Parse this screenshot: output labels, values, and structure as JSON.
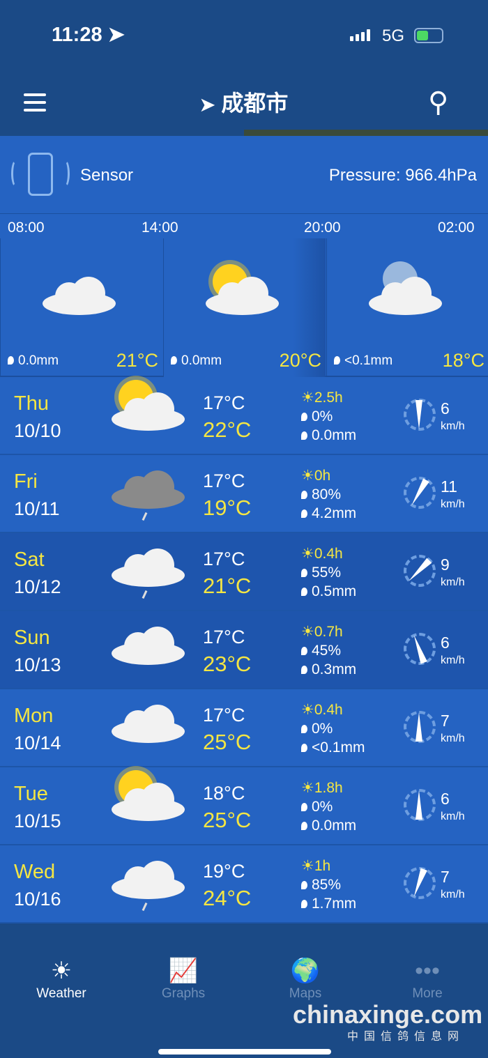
{
  "status": {
    "time": "11:28",
    "network": "5G"
  },
  "nav": {
    "title": "成都市"
  },
  "sensor": {
    "label": "Sensor",
    "pressure": "Pressure: 966.4hPa"
  },
  "hourly": {
    "times": [
      "08:00",
      "14:00",
      "20:00",
      "02:00"
    ],
    "items": [
      {
        "icon": "cloudy",
        "precip": "0.0mm",
        "temp": "21°C"
      },
      {
        "icon": "partly-sunny",
        "precip": "0.0mm",
        "temp": "20°C"
      },
      {
        "icon": "night-cloudy",
        "precip": "<0.1mm",
        "temp": "18°C"
      }
    ]
  },
  "days": [
    {
      "day": "Thu",
      "date": "10/10",
      "icon": "partly-sunny",
      "min": "17°C",
      "max": "22°C",
      "sun": "2.5h",
      "prob": "0%",
      "rain": "0.0mm",
      "wind": "6",
      "unit": "km/h",
      "wind_dir_deg": 180
    },
    {
      "day": "Fri",
      "date": "10/11",
      "icon": "rain-dark",
      "min": "17°C",
      "max": "19°C",
      "sun": "0h",
      "prob": "80%",
      "rain": "4.2mm",
      "wind": "11",
      "unit": "km/h",
      "wind_dir_deg": 210
    },
    {
      "day": "Sat",
      "date": "10/12",
      "icon": "rain",
      "min": "17°C",
      "max": "21°C",
      "sun": "0.4h",
      "prob": "55%",
      "rain": "0.5mm",
      "wind": "9",
      "unit": "km/h",
      "wind_dir_deg": 225
    },
    {
      "day": "Sun",
      "date": "10/13",
      "icon": "cloudy",
      "min": "17°C",
      "max": "23°C",
      "sun": "0.7h",
      "prob": "45%",
      "rain": "0.3mm",
      "wind": "6",
      "unit": "km/h",
      "wind_dir_deg": 340
    },
    {
      "day": "Mon",
      "date": "10/14",
      "icon": "cloudy",
      "min": "17°C",
      "max": "25°C",
      "sun": "0.4h",
      "prob": "0%",
      "rain": "<0.1mm",
      "wind": "7",
      "unit": "km/h",
      "wind_dir_deg": 0
    },
    {
      "day": "Tue",
      "date": "10/15",
      "icon": "partly-sunny",
      "min": "18°C",
      "max": "25°C",
      "sun": "1.8h",
      "prob": "0%",
      "rain": "0.0mm",
      "wind": "6",
      "unit": "km/h",
      "wind_dir_deg": 0
    },
    {
      "day": "Wed",
      "date": "10/16",
      "icon": "rain",
      "min": "19°C",
      "max": "24°C",
      "sun": "1h",
      "prob": "85%",
      "rain": "1.7mm",
      "wind": "7",
      "unit": "km/h",
      "wind_dir_deg": 200
    }
  ],
  "tabs": [
    {
      "label": "Weather",
      "active": true
    },
    {
      "label": "Graphs"
    },
    {
      "label": "Maps"
    },
    {
      "label": "More"
    }
  ],
  "watermark": {
    "text": "chinaxinge.com",
    "sub": "中国信鸽信息网"
  },
  "colors": {
    "accent": "#f5e642",
    "row": "#2563c2",
    "row_dark": "#1e55ad",
    "bar": "#1b4a86"
  }
}
